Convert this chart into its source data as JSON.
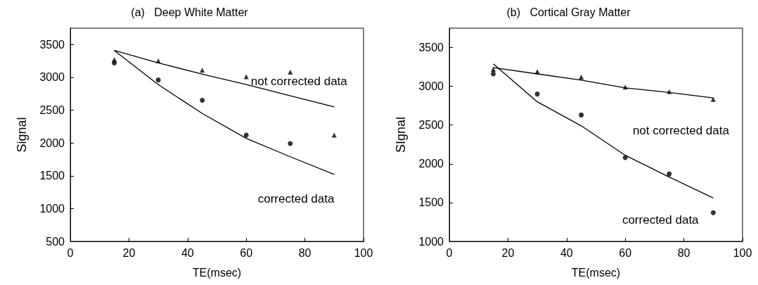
{
  "chart_data": [
    {
      "type": "scatter",
      "title": "(a)   Deep White Matter",
      "xlabel": "TE(msec)",
      "ylabel": "Signal",
      "xlim": [
        0,
        100
      ],
      "xticks": [
        0,
        20,
        40,
        60,
        80,
        100
      ],
      "ylim": [
        500,
        3750
      ],
      "yticks": [
        500,
        1000,
        1500,
        2000,
        2500,
        3000,
        3500
      ],
      "x": [
        15,
        30,
        45,
        60,
        75,
        90
      ],
      "series": [
        {
          "marker": "triangle",
          "color": "#000000",
          "values": [
            3270,
            3250,
            3110,
            3010,
            3080,
            2120
          ]
        },
        {
          "marker": "circle",
          "color": "#000000",
          "values": [
            3220,
            2960,
            2650,
            2120,
            1990,
            null
          ]
        },
        {
          "type": "line",
          "marker": "none",
          "color": "#000000",
          "values": [
            3410,
            3220,
            3050,
            2890,
            2720,
            2550
          ]
        },
        {
          "type": "line",
          "marker": "none",
          "color": "#000000",
          "values": [
            3410,
            2890,
            2450,
            2070,
            1790,
            1520
          ]
        }
      ],
      "annotations": [
        "not corrected data",
        "corrected data"
      ]
    },
    {
      "type": "scatter",
      "title": "(b)   Cortical Gray Matter",
      "xlabel": "TE(msec)",
      "ylabel": "SIgnal",
      "xlim": [
        0,
        100
      ],
      "xticks": [
        0,
        20,
        40,
        60,
        80,
        100
      ],
      "ylim": [
        1000,
        3750
      ],
      "yticks": [
        1000,
        1500,
        2000,
        2500,
        3000,
        3500
      ],
      "x": [
        15,
        30,
        45,
        60,
        75,
        90
      ],
      "series": [
        {
          "marker": "triangle",
          "color": "#000000",
          "values": [
            3220,
            3190,
            3120,
            2990,
            2930,
            2830
          ]
        },
        {
          "marker": "circle",
          "color": "#000000",
          "values": [
            3160,
            2900,
            2630,
            2080,
            1870,
            1370
          ]
        },
        {
          "type": "line",
          "marker": "none",
          "color": "#000000",
          "values": [
            3240,
            3160,
            3080,
            2980,
            2920,
            2850
          ]
        },
        {
          "type": "line",
          "marker": "none",
          "color": "#000000",
          "values": [
            3290,
            2800,
            2490,
            2110,
            1830,
            1560
          ]
        }
      ],
      "annotations": [
        "not corrected data",
        "corrected data"
      ]
    }
  ]
}
